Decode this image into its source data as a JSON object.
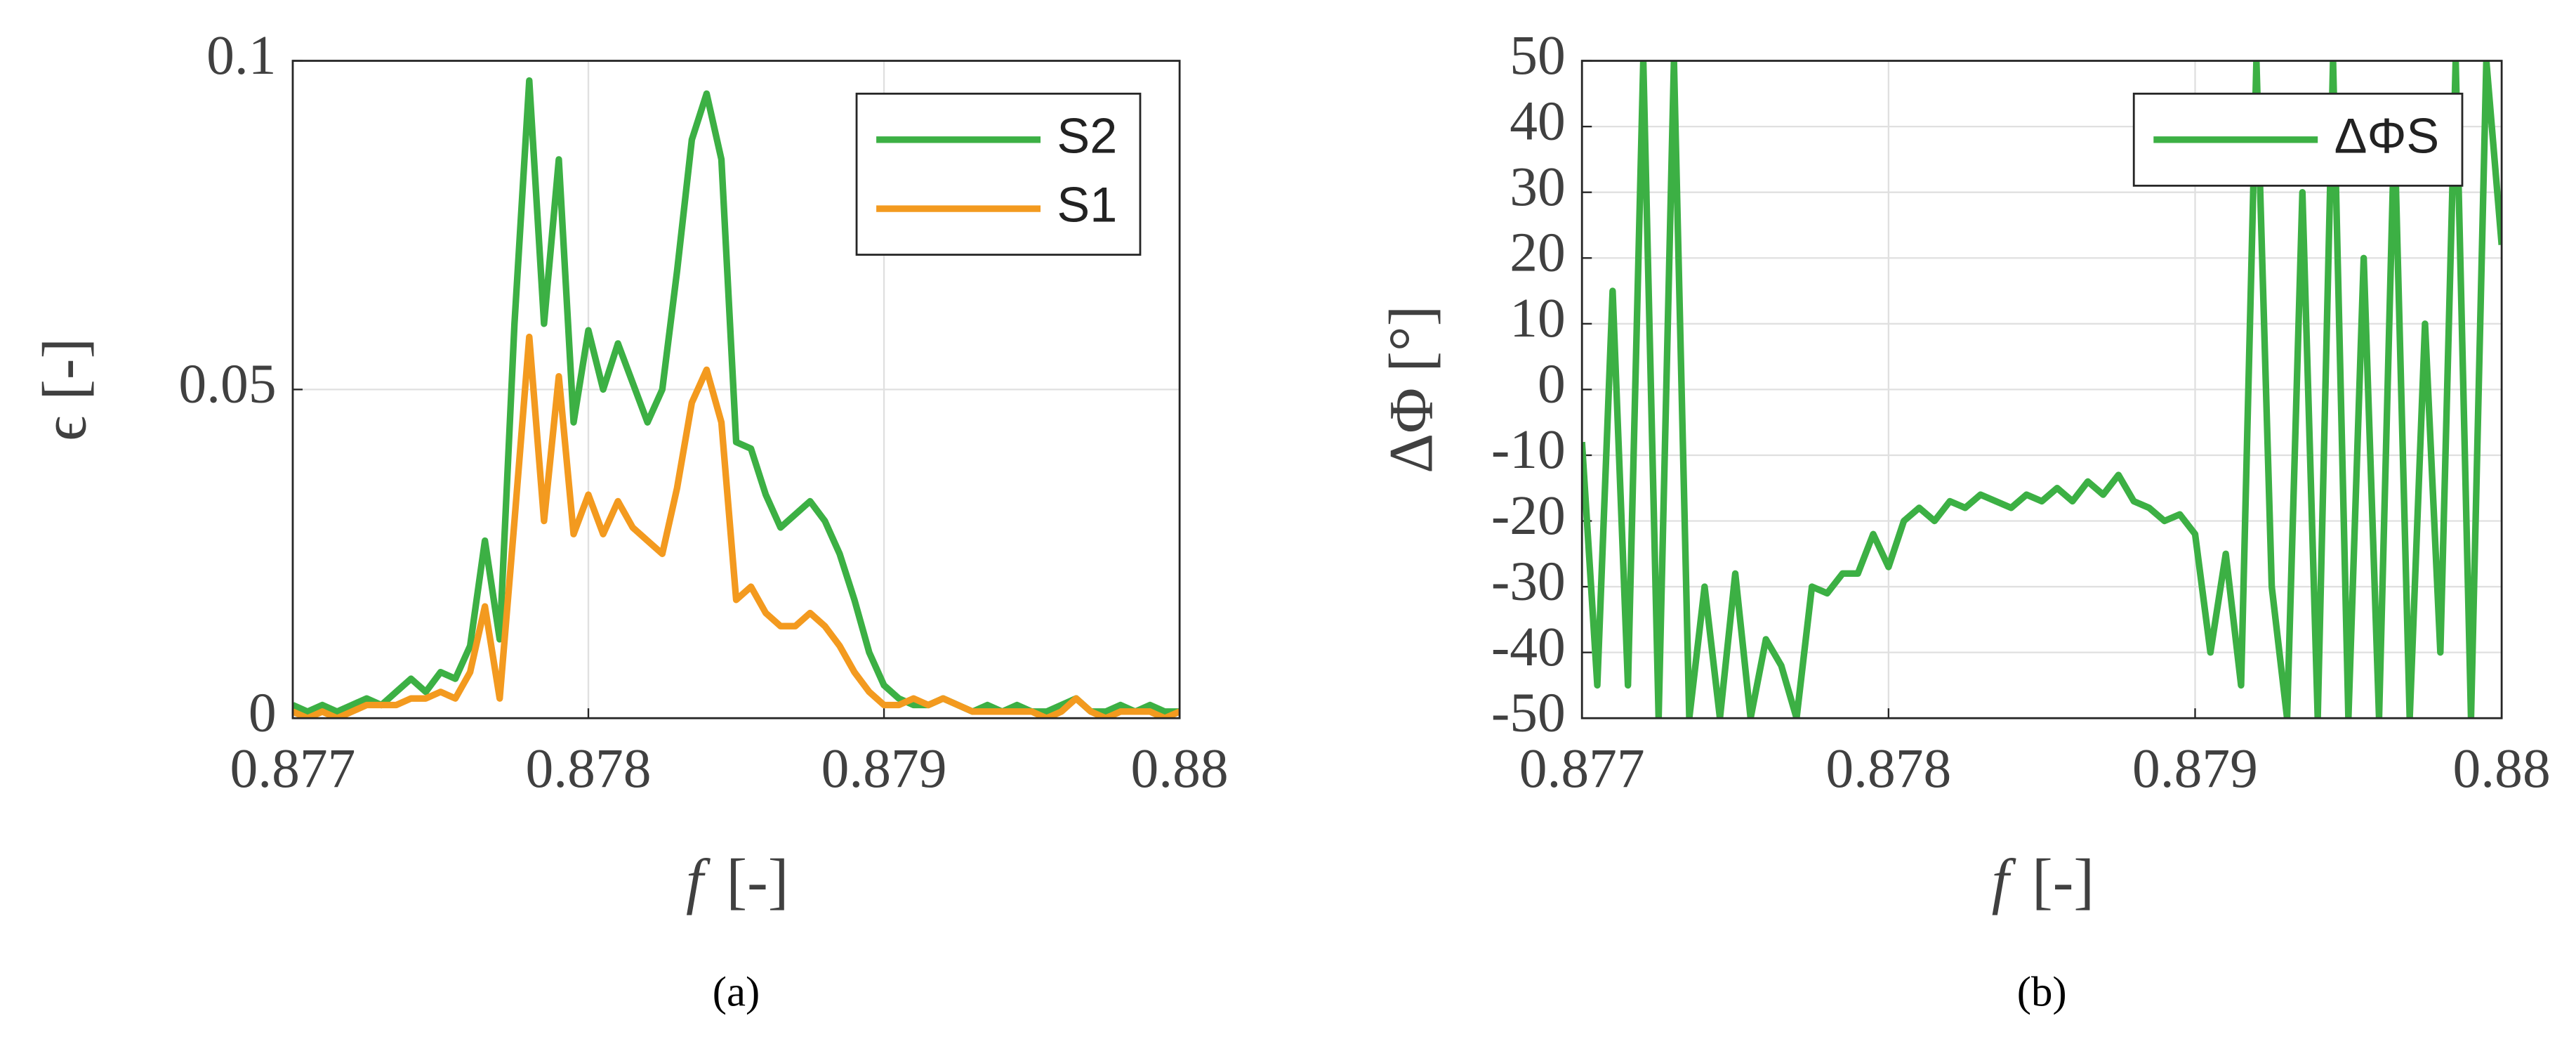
{
  "chart_data": [
    {
      "type": "line",
      "caption": "(a)",
      "xlabel": "f",
      "xunit": "[-]",
      "ylabel": "ϵ [-]",
      "x": [
        0.877,
        0.87705,
        0.8771,
        0.87715,
        0.8772,
        0.87725,
        0.8773,
        0.87735,
        0.8774,
        0.87745,
        0.8775,
        0.87755,
        0.8776,
        0.87765,
        0.8777,
        0.87775,
        0.8778,
        0.87785,
        0.8779,
        0.87795,
        0.878,
        0.87805,
        0.8781,
        0.87815,
        0.8782,
        0.87825,
        0.8783,
        0.87835,
        0.8784,
        0.87845,
        0.8785,
        0.87855,
        0.8786,
        0.87865,
        0.8787,
        0.87875,
        0.8788,
        0.87885,
        0.8789,
        0.87895,
        0.879,
        0.87905,
        0.8791,
        0.87915,
        0.8792,
        0.87925,
        0.8793,
        0.87935,
        0.8794,
        0.87945,
        0.8795,
        0.87955,
        0.8796,
        0.87965,
        0.8797,
        0.87975,
        0.8798,
        0.87985,
        0.8799,
        0.87995,
        0.88
      ],
      "series": [
        {
          "name": "S2",
          "color": "#3cb044",
          "values": [
            0.002,
            0.001,
            0.002,
            0.001,
            0.002,
            0.003,
            0.002,
            0.004,
            0.006,
            0.004,
            0.007,
            0.006,
            0.011,
            0.027,
            0.012,
            0.06,
            0.097,
            0.06,
            0.085,
            0.045,
            0.059,
            0.05,
            0.057,
            0.051,
            0.045,
            0.05,
            0.068,
            0.088,
            0.095,
            0.085,
            0.042,
            0.041,
            0.034,
            0.029,
            0.031,
            0.033,
            0.03,
            0.025,
            0.018,
            0.01,
            0.005,
            0.003,
            0.002,
            0.002,
            0.003,
            0.002,
            0.001,
            0.002,
            0.001,
            0.002,
            0.001,
            0.001,
            0.002,
            0.003,
            0.001,
            0.001,
            0.002,
            0.001,
            0.002,
            0.001,
            0.001
          ]
        },
        {
          "name": "S1",
          "color": "#f39a1f",
          "values": [
            0.001,
            0,
            0.001,
            0,
            0.001,
            0.002,
            0.002,
            0.002,
            0.003,
            0.003,
            0.004,
            0.003,
            0.007,
            0.017,
            0.003,
            0.03,
            0.058,
            0.03,
            0.052,
            0.028,
            0.034,
            0.028,
            0.033,
            0.029,
            0.027,
            0.025,
            0.035,
            0.048,
            0.053,
            0.045,
            0.018,
            0.02,
            0.016,
            0.014,
            0.014,
            0.016,
            0.014,
            0.011,
            0.007,
            0.004,
            0.002,
            0.002,
            0.003,
            0.002,
            0.003,
            0.002,
            0.001,
            0.001,
            0.001,
            0.001,
            0.001,
            0,
            0.001,
            0.003,
            0.001,
            0,
            0.001,
            0.001,
            0.001,
            0,
            0.001
          ]
        }
      ],
      "xlim": [
        0.877,
        0.88
      ],
      "ylim": [
        0,
        0.1
      ],
      "xticks": [
        0.877,
        0.878,
        0.879,
        0.88
      ],
      "yticks": [
        0,
        0.05,
        0.1
      ],
      "grid": true,
      "legend": "upper right"
    },
    {
      "type": "line",
      "caption": "(b)",
      "xlabel": "f",
      "xunit": "[-]",
      "ylabel": "ΔΦ [°]",
      "x": [
        0.877,
        0.87705,
        0.8771,
        0.87715,
        0.8772,
        0.87725,
        0.8773,
        0.87735,
        0.8774,
        0.87745,
        0.8775,
        0.87755,
        0.8776,
        0.87765,
        0.8777,
        0.87775,
        0.8778,
        0.87785,
        0.8779,
        0.87795,
        0.878,
        0.87805,
        0.8781,
        0.87815,
        0.8782,
        0.87825,
        0.8783,
        0.87835,
        0.8784,
        0.87845,
        0.8785,
        0.87855,
        0.8786,
        0.87865,
        0.8787,
        0.87875,
        0.8788,
        0.87885,
        0.8789,
        0.87895,
        0.879,
        0.87905,
        0.8791,
        0.87915,
        0.8792,
        0.87925,
        0.8793,
        0.87935,
        0.8794,
        0.87945,
        0.8795,
        0.87955,
        0.8796,
        0.87965,
        0.8797,
        0.87975,
        0.8798,
        0.87985,
        0.8799,
        0.87995,
        0.88
      ],
      "series": [
        {
          "name": "ΔΦS",
          "color": "#3cb044",
          "values": [
            -8,
            -45,
            15,
            -45,
            50,
            -50,
            50,
            -50,
            -30,
            -50,
            -28,
            -50,
            -38,
            -42,
            -50,
            -30,
            -31,
            -28,
            -28,
            -22,
            -27,
            -20,
            -18,
            -20,
            -17,
            -18,
            -16,
            -17,
            -18,
            -16,
            -17,
            -15,
            -17,
            -14,
            -16,
            -13,
            -17,
            -18,
            -20,
            -19,
            -22,
            -40,
            -25,
            -45,
            50,
            -30,
            -50,
            30,
            -50,
            50,
            -50,
            20,
            -50,
            40,
            -50,
            10,
            -40,
            50,
            -50,
            50,
            22
          ]
        }
      ],
      "xlim": [
        0.877,
        0.88
      ],
      "ylim": [
        -50,
        50
      ],
      "xticks": [
        0.877,
        0.878,
        0.879,
        0.88
      ],
      "yticks": [
        -50,
        -40,
        -30,
        -20,
        -10,
        0,
        10,
        20,
        30,
        40,
        50
      ],
      "grid": true,
      "legend": "upper right"
    }
  ]
}
